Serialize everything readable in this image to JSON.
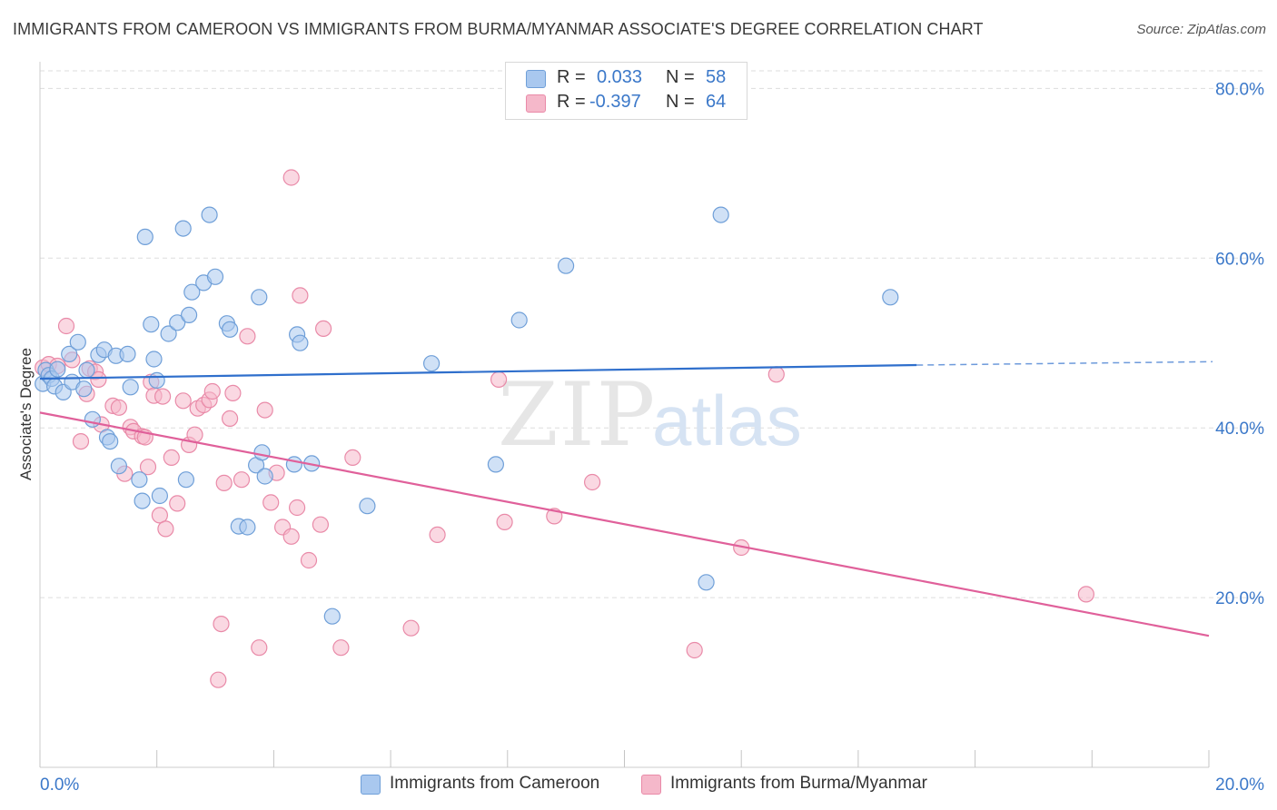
{
  "title": "IMMIGRANTS FROM CAMEROON VS IMMIGRANTS FROM BURMA/MYANMAR ASSOCIATE'S DEGREE CORRELATION CHART",
  "source": "Source: ZipAtlas.com",
  "watermark": {
    "zip": "ZIP",
    "atlas": "atlas"
  },
  "legend": {
    "rows": [
      {
        "r_label": "R =",
        "r_value": "0.033",
        "n_label": "N =",
        "n_value": "58",
        "color": "#a9c8ef"
      },
      {
        "r_label": "R =",
        "r_value": "-0.397",
        "n_label": "N =",
        "n_value": "64",
        "color": "#f5b8ca"
      }
    ]
  },
  "bottom_legend": [
    {
      "label": "Immigrants from Cameroon",
      "color": "#a9c8ef"
    },
    {
      "label": "Immigrants from Burma/Myanmar",
      "color": "#f5b8ca"
    }
  ],
  "colors": {
    "blue_fill": "#a9c8ef",
    "blue_stroke": "#6f9fd8",
    "blue_line": "#2f6fcc",
    "pink_fill": "#f5b8ca",
    "pink_stroke": "#e98aa8",
    "pink_line": "#e0609a",
    "grid": "#dddddd",
    "axis_text": "#3b78c9"
  },
  "chart_data": {
    "type": "scatter",
    "ylabel": "Associate's Degree",
    "xlabel": "",
    "x_tick_labels": [
      "0.0%",
      "20.0%"
    ],
    "y_tick_labels": [
      "20.0%",
      "40.0%",
      "60.0%",
      "80.0%"
    ],
    "y_ticks": [
      20,
      40,
      60,
      80
    ],
    "xlim": [
      0,
      20
    ],
    "ylim": [
      0,
      84
    ],
    "grid": true,
    "legend_position": "top-center",
    "series": [
      {
        "name": "Immigrants from Cameroon",
        "r": 0.033,
        "n": 58,
        "trend": {
          "x0": 0,
          "y0": 45.8,
          "x1": 15,
          "y1": 47.4,
          "dashed_to_x": 20,
          "dashed_to_y": 47.8
        },
        "points": [
          [
            0.05,
            45.2
          ],
          [
            0.1,
            46.8
          ],
          [
            0.15,
            46.2
          ],
          [
            0.2,
            45.8
          ],
          [
            0.25,
            44.9
          ],
          [
            0.3,
            46.9
          ],
          [
            0.4,
            44.2
          ],
          [
            0.5,
            48.7
          ],
          [
            0.55,
            45.4
          ],
          [
            0.65,
            50.1
          ],
          [
            0.75,
            44.6
          ],
          [
            0.8,
            46.8
          ],
          [
            0.9,
            41.0
          ],
          [
            1.0,
            48.6
          ],
          [
            1.1,
            49.2
          ],
          [
            1.15,
            38.9
          ],
          [
            1.2,
            38.4
          ],
          [
            1.3,
            48.5
          ],
          [
            1.35,
            35.5
          ],
          [
            1.5,
            48.7
          ],
          [
            1.55,
            44.8
          ],
          [
            1.7,
            33.9
          ],
          [
            1.75,
            31.4
          ],
          [
            1.8,
            62.5
          ],
          [
            1.9,
            52.2
          ],
          [
            1.95,
            48.1
          ],
          [
            2.0,
            45.6
          ],
          [
            2.05,
            32.0
          ],
          [
            2.2,
            51.1
          ],
          [
            2.35,
            52.4
          ],
          [
            2.45,
            63.5
          ],
          [
            2.5,
            33.9
          ],
          [
            2.55,
            53.3
          ],
          [
            2.6,
            56.0
          ],
          [
            2.8,
            57.1
          ],
          [
            2.9,
            65.1
          ],
          [
            3.0,
            57.8
          ],
          [
            3.2,
            52.3
          ],
          [
            3.25,
            51.6
          ],
          [
            3.4,
            28.4
          ],
          [
            3.55,
            28.3
          ],
          [
            3.7,
            35.6
          ],
          [
            3.75,
            55.4
          ],
          [
            3.8,
            37.1
          ],
          [
            3.85,
            34.3
          ],
          [
            4.35,
            35.7
          ],
          [
            4.4,
            51.0
          ],
          [
            4.45,
            50.0
          ],
          [
            4.65,
            35.8
          ],
          [
            5.0,
            17.8
          ],
          [
            5.6,
            30.8
          ],
          [
            6.7,
            47.6
          ],
          [
            7.8,
            35.7
          ],
          [
            8.2,
            52.7
          ],
          [
            9.0,
            59.1
          ],
          [
            11.4,
            21.8
          ],
          [
            11.65,
            65.1
          ],
          [
            14.55,
            55.4
          ]
        ]
      },
      {
        "name": "Immigrants from Burma/Myanmar",
        "r": -0.397,
        "n": 64,
        "trend": {
          "x0": 0,
          "y0": 41.8,
          "x1": 20,
          "y1": 15.5
        },
        "points": [
          [
            0.05,
            47.1
          ],
          [
            0.15,
            47.5
          ],
          [
            0.3,
            47.3
          ],
          [
            0.45,
            52.0
          ],
          [
            0.55,
            48.0
          ],
          [
            0.7,
            38.4
          ],
          [
            0.8,
            44.0
          ],
          [
            0.85,
            47.0
          ],
          [
            0.95,
            46.6
          ],
          [
            1.0,
            45.7
          ],
          [
            1.05,
            40.4
          ],
          [
            1.25,
            42.6
          ],
          [
            1.35,
            42.4
          ],
          [
            1.45,
            34.6
          ],
          [
            1.55,
            40.1
          ],
          [
            1.6,
            39.6
          ],
          [
            1.75,
            39.0
          ],
          [
            1.8,
            38.9
          ],
          [
            1.85,
            35.4
          ],
          [
            1.9,
            45.4
          ],
          [
            1.95,
            43.8
          ],
          [
            2.05,
            29.7
          ],
          [
            2.1,
            43.7
          ],
          [
            2.15,
            28.1
          ],
          [
            2.25,
            36.5
          ],
          [
            2.35,
            31.1
          ],
          [
            2.45,
            43.2
          ],
          [
            2.55,
            38.0
          ],
          [
            2.65,
            39.2
          ],
          [
            2.7,
            42.3
          ],
          [
            2.8,
            42.7
          ],
          [
            2.9,
            43.3
          ],
          [
            2.95,
            44.3
          ],
          [
            3.05,
            10.3
          ],
          [
            3.1,
            16.9
          ],
          [
            3.15,
            33.5
          ],
          [
            3.25,
            41.1
          ],
          [
            3.3,
            44.1
          ],
          [
            3.45,
            33.9
          ],
          [
            3.55,
            50.8
          ],
          [
            3.75,
            14.1
          ],
          [
            3.85,
            42.1
          ],
          [
            3.95,
            31.2
          ],
          [
            4.05,
            34.7
          ],
          [
            4.15,
            28.3
          ],
          [
            4.3,
            27.2
          ],
          [
            4.4,
            30.6
          ],
          [
            4.45,
            55.6
          ],
          [
            4.6,
            24.4
          ],
          [
            4.8,
            28.6
          ],
          [
            4.85,
            51.7
          ],
          [
            5.15,
            14.1
          ],
          [
            5.35,
            36.5
          ],
          [
            6.35,
            16.4
          ],
          [
            6.8,
            27.4
          ],
          [
            7.85,
            45.7
          ],
          [
            7.95,
            28.9
          ],
          [
            8.8,
            29.6
          ],
          [
            9.45,
            33.6
          ],
          [
            11.2,
            13.8
          ],
          [
            12.0,
            25.9
          ],
          [
            12.6,
            46.3
          ],
          [
            17.9,
            20.4
          ],
          [
            4.3,
            69.5
          ]
        ]
      }
    ]
  }
}
